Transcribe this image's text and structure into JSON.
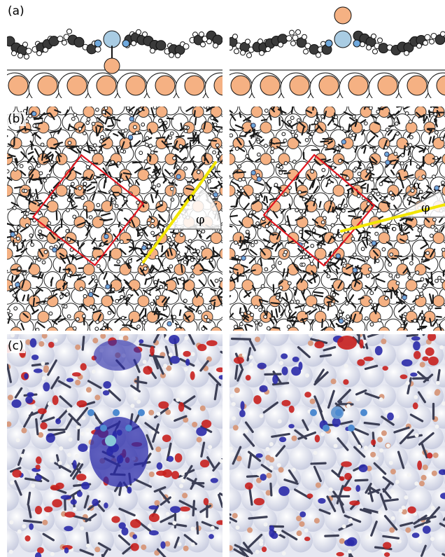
{
  "figure": {
    "panels": [
      {
        "id": "a",
        "label": "(a)"
      },
      {
        "id": "b",
        "label": "(b)"
      },
      {
        "id": "c",
        "label": "(c)"
      }
    ],
    "angle_labels": {
      "alpha": "α",
      "phi": "φ"
    },
    "colors": {
      "carbon": "#3a3a3a",
      "hydrogen": "#ffffff",
      "nitrogen": "#6fa8dc",
      "metal": "#a9cce3",
      "metal_top": "#f5b183",
      "substrate_top": "#f5b183",
      "substrate_bottom": "#ffffff",
      "unit_cell": "#e0141e",
      "molecular_axis": "#f2e600",
      "surface_c": "#c9cde0",
      "density_gain": "#2a2aa8",
      "density_loss": "#c8201e",
      "bond_c": "#3c3f55"
    }
  }
}
